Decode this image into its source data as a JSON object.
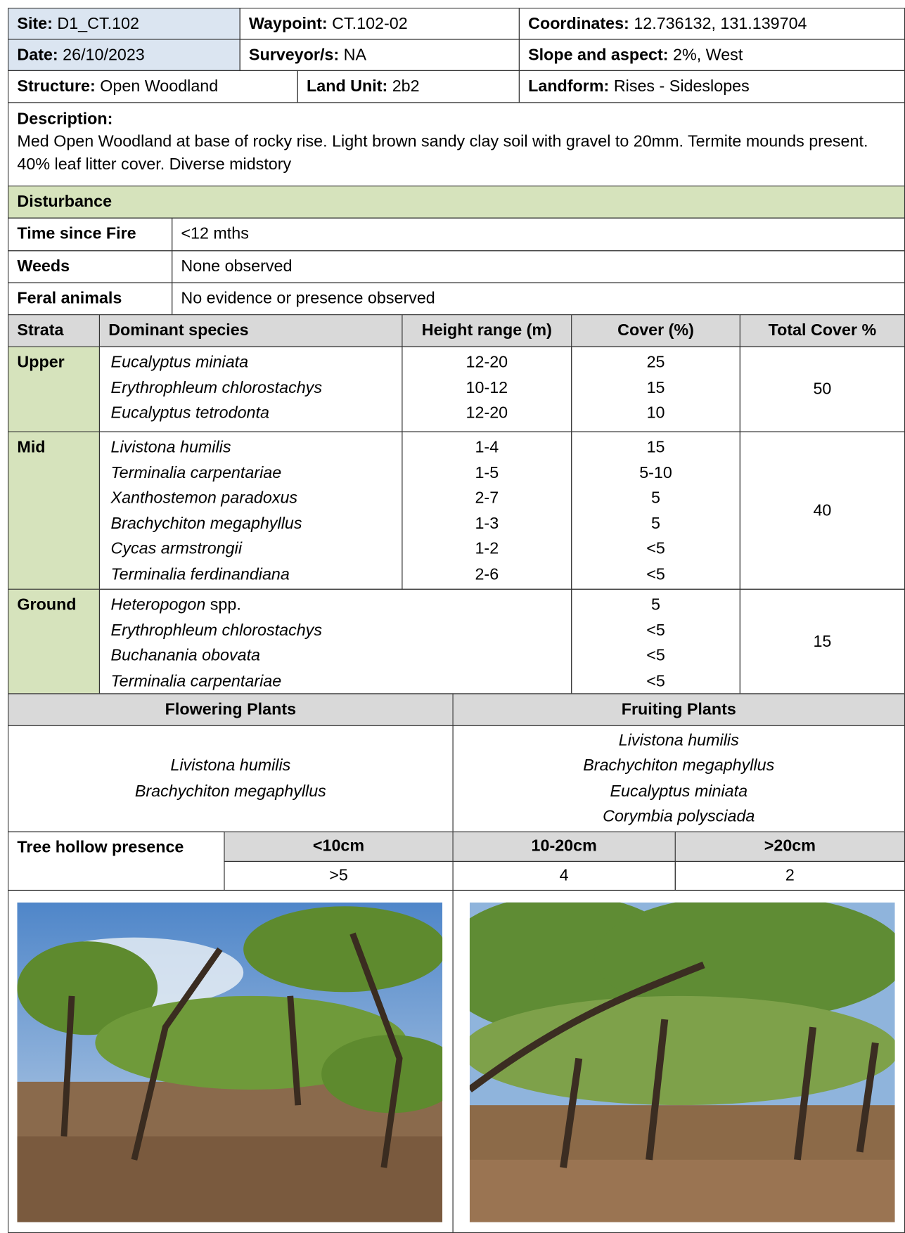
{
  "header": {
    "site": {
      "label": "Site:",
      "value": "D1_CT.102"
    },
    "waypoint": {
      "label": "Waypoint:",
      "value": "CT.102-02"
    },
    "coordinates": {
      "label": "Coordinates:",
      "value": "12.736132, 131.139704"
    },
    "date": {
      "label": "Date:",
      "value": "26/10/2023"
    },
    "surveyors": {
      "label": "Surveyor/s:",
      "value": "NA"
    },
    "slope": {
      "label": "Slope and aspect:",
      "value": "2%, West"
    },
    "structure": {
      "label": "Structure:",
      "value": "Open Woodland"
    },
    "land_unit": {
      "label": "Land Unit:",
      "value": "2b2"
    },
    "landform": {
      "label": "Landform:",
      "value": "Rises - Sideslopes"
    }
  },
  "description": {
    "label": "Description:",
    "text": "Med Open Woodland at base of rocky rise. Light brown sandy clay soil with gravel to 20mm. Termite mounds present. 40% leaf litter cover. Diverse midstory"
  },
  "disturbance": {
    "title": "Disturbance",
    "rows": [
      [
        "Time since Fire",
        "<12 mths"
      ],
      [
        "Weeds",
        "None observed"
      ],
      [
        "Feral animals",
        "No evidence or presence observed"
      ]
    ]
  },
  "strata": {
    "headers": [
      "Strata",
      "Dominant species",
      "Height range (m)",
      "Cover (%)",
      "Total Cover %"
    ],
    "rows": [
      {
        "name": "Upper",
        "species": [
          {
            "name": "Eucalyptus miniata"
          },
          {
            "name": "Erythrophleum chlorostachys"
          },
          {
            "name": "Eucalyptus tetrodonta"
          }
        ],
        "heights": [
          "12-20",
          "10-12",
          "12-20"
        ],
        "covers": [
          "25",
          "15",
          "10"
        ],
        "total": "50"
      },
      {
        "name": "Mid",
        "species": [
          {
            "name": "Livistona humilis"
          },
          {
            "name": "Terminalia carpentariae"
          },
          {
            "name": "Xanthostemon paradoxus"
          },
          {
            "name": "Brachychiton megaphyllus"
          },
          {
            "name": "Cycas armstrongii"
          },
          {
            "name": "Terminalia ferdinandiana"
          }
        ],
        "heights": [
          "1-4",
          "1-5",
          "2-7",
          "1-3",
          "1-2",
          "2-6"
        ],
        "covers": [
          "15",
          "5-10",
          "5",
          "5",
          "<5",
          "<5"
        ],
        "total": "40"
      },
      {
        "name": "Ground",
        "species": [
          {
            "name": "Heteropogon",
            "qualifier": "spp."
          },
          {
            "name": "Erythrophleum chlorostachys"
          },
          {
            "name": "Buchanania obovata"
          },
          {
            "name": "Terminalia carpentariae"
          }
        ],
        "covers": [
          "5",
          "<5",
          "<5",
          "<5"
        ],
        "total": "15"
      }
    ]
  },
  "flowering": {
    "title": "Flowering Plants",
    "species": [
      "Livistona humilis",
      "Brachychiton megaphyllus"
    ]
  },
  "fruiting": {
    "title": "Fruiting Plants",
    "species": [
      "Livistona humilis",
      "Brachychiton megaphyllus",
      "Eucalyptus miniata",
      "Corymbia polysciada"
    ]
  },
  "tree_hollows": {
    "label": "Tree hollow presence",
    "classes": [
      "<10cm",
      "10-20cm",
      ">20cm"
    ],
    "counts": [
      ">5",
      "4",
      "2"
    ]
  }
}
